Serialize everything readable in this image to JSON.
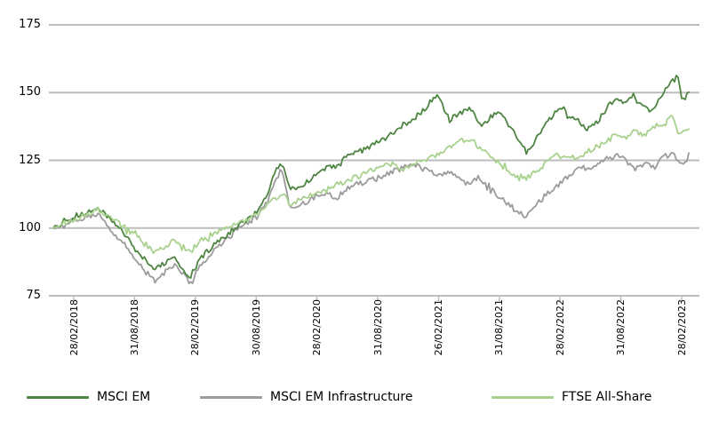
{
  "chart_data": {
    "type": "line",
    "title": "",
    "xlabel": "",
    "ylabel": "",
    "ylim": [
      75,
      175
    ],
    "yticks": [
      175,
      150,
      125,
      100,
      75
    ],
    "xticklabels": [
      "28/02/2018",
      "31/08/2018",
      "28/02/2019",
      "30/08/2019",
      "28/02/2020",
      "31/08/2020",
      "26/02/2021",
      "31/08/2021",
      "28/02/2022",
      "31/08/2022",
      "28/02/2023"
    ],
    "grid": "horizontal",
    "legend_position": "bottom",
    "colors": {
      "grid": "#bdbdbd",
      "axis_text": "#000000"
    },
    "series": [
      {
        "name": "MSCI EM",
        "color": "#4e8542",
        "points": [
          [
            0,
            100
          ],
          [
            0.02,
            102
          ],
          [
            0.045,
            105
          ],
          [
            0.07,
            108
          ],
          [
            0.085,
            104
          ],
          [
            0.1,
            101
          ],
          [
            0.115,
            97
          ],
          [
            0.13,
            92
          ],
          [
            0.145,
            88
          ],
          [
            0.16,
            85
          ],
          [
            0.175,
            87
          ],
          [
            0.19,
            90
          ],
          [
            0.2,
            86
          ],
          [
            0.215,
            82
          ],
          [
            0.23,
            88
          ],
          [
            0.245,
            92
          ],
          [
            0.26,
            95
          ],
          [
            0.275,
            98
          ],
          [
            0.29,
            101
          ],
          [
            0.305,
            103
          ],
          [
            0.32,
            106
          ],
          [
            0.335,
            112
          ],
          [
            0.35,
            121
          ],
          [
            0.36,
            124
          ],
          [
            0.372,
            114
          ],
          [
            0.385,
            115
          ],
          [
            0.4,
            117
          ],
          [
            0.415,
            120
          ],
          [
            0.43,
            122
          ],
          [
            0.445,
            123
          ],
          [
            0.46,
            126
          ],
          [
            0.475,
            128
          ],
          [
            0.49,
            129
          ],
          [
            0.505,
            131
          ],
          [
            0.52,
            133
          ],
          [
            0.535,
            135
          ],
          [
            0.55,
            138
          ],
          [
            0.565,
            140
          ],
          [
            0.58,
            143
          ],
          [
            0.595,
            147
          ],
          [
            0.605,
            149
          ],
          [
            0.615,
            144
          ],
          [
            0.625,
            140
          ],
          [
            0.64,
            142
          ],
          [
            0.655,
            145
          ],
          [
            0.665,
            141
          ],
          [
            0.675,
            138
          ],
          [
            0.69,
            141
          ],
          [
            0.705,
            143
          ],
          [
            0.715,
            139
          ],
          [
            0.73,
            133
          ],
          [
            0.745,
            128
          ],
          [
            0.755,
            131
          ],
          [
            0.77,
            137
          ],
          [
            0.785,
            141
          ],
          [
            0.8,
            145
          ],
          [
            0.81,
            142
          ],
          [
            0.825,
            139
          ],
          [
            0.84,
            136
          ],
          [
            0.855,
            139
          ],
          [
            0.87,
            144
          ],
          [
            0.885,
            148
          ],
          [
            0.9,
            146
          ],
          [
            0.91,
            148
          ],
          [
            0.925,
            146
          ],
          [
            0.94,
            143
          ],
          [
            0.955,
            148
          ],
          [
            0.965,
            152
          ],
          [
            0.975,
            155
          ],
          [
            0.982,
            158
          ],
          [
            0.99,
            147
          ],
          [
            1,
            150
          ]
        ]
      },
      {
        "name": "MSCI EM Infrastructure",
        "color": "#9b9b9b",
        "points": [
          [
            0,
            100
          ],
          [
            0.02,
            101
          ],
          [
            0.045,
            103
          ],
          [
            0.07,
            105
          ],
          [
            0.085,
            101
          ],
          [
            0.1,
            97
          ],
          [
            0.115,
            93
          ],
          [
            0.13,
            88
          ],
          [
            0.145,
            84
          ],
          [
            0.16,
            80
          ],
          [
            0.175,
            83
          ],
          [
            0.19,
            86
          ],
          [
            0.2,
            84
          ],
          [
            0.215,
            80
          ],
          [
            0.23,
            86
          ],
          [
            0.245,
            90
          ],
          [
            0.26,
            93
          ],
          [
            0.275,
            96
          ],
          [
            0.29,
            100
          ],
          [
            0.305,
            102
          ],
          [
            0.32,
            104
          ],
          [
            0.335,
            110
          ],
          [
            0.35,
            118
          ],
          [
            0.36,
            122
          ],
          [
            0.372,
            108
          ],
          [
            0.385,
            108
          ],
          [
            0.4,
            110
          ],
          [
            0.415,
            112
          ],
          [
            0.43,
            113
          ],
          [
            0.445,
            111
          ],
          [
            0.46,
            114
          ],
          [
            0.475,
            116
          ],
          [
            0.49,
            117
          ],
          [
            0.505,
            118
          ],
          [
            0.52,
            119
          ],
          [
            0.535,
            121
          ],
          [
            0.55,
            122
          ],
          [
            0.565,
            124
          ],
          [
            0.58,
            122
          ],
          [
            0.595,
            121
          ],
          [
            0.61,
            119
          ],
          [
            0.625,
            121
          ],
          [
            0.64,
            118
          ],
          [
            0.655,
            116
          ],
          [
            0.67,
            119
          ],
          [
            0.685,
            115
          ],
          [
            0.7,
            112
          ],
          [
            0.715,
            109
          ],
          [
            0.73,
            106
          ],
          [
            0.745,
            104
          ],
          [
            0.755,
            107
          ],
          [
            0.77,
            111
          ],
          [
            0.785,
            114
          ],
          [
            0.8,
            117
          ],
          [
            0.815,
            120
          ],
          [
            0.83,
            123
          ],
          [
            0.845,
            121
          ],
          [
            0.86,
            124
          ],
          [
            0.875,
            126
          ],
          [
            0.89,
            127
          ],
          [
            0.9,
            125
          ],
          [
            0.915,
            122
          ],
          [
            0.93,
            124
          ],
          [
            0.945,
            122
          ],
          [
            0.96,
            126
          ],
          [
            0.975,
            128
          ],
          [
            0.985,
            123
          ],
          [
            1,
            126
          ]
        ]
      },
      {
        "name": "FTSE All-Share",
        "color": "#a9d18e",
        "points": [
          [
            0,
            100
          ],
          [
            0.02,
            102
          ],
          [
            0.045,
            104
          ],
          [
            0.07,
            107
          ],
          [
            0.085,
            105
          ],
          [
            0.1,
            102
          ],
          [
            0.115,
            100
          ],
          [
            0.13,
            97
          ],
          [
            0.145,
            94
          ],
          [
            0.16,
            91
          ],
          [
            0.175,
            93
          ],
          [
            0.19,
            96
          ],
          [
            0.2,
            94
          ],
          [
            0.215,
            91
          ],
          [
            0.23,
            95
          ],
          [
            0.245,
            97
          ],
          [
            0.26,
            99
          ],
          [
            0.275,
            100
          ],
          [
            0.29,
            102
          ],
          [
            0.305,
            103
          ],
          [
            0.32,
            105
          ],
          [
            0.335,
            108
          ],
          [
            0.35,
            111
          ],
          [
            0.36,
            113
          ],
          [
            0.372,
            109
          ],
          [
            0.385,
            110
          ],
          [
            0.4,
            112
          ],
          [
            0.415,
            113
          ],
          [
            0.43,
            114
          ],
          [
            0.445,
            116
          ],
          [
            0.46,
            117
          ],
          [
            0.475,
            119
          ],
          [
            0.49,
            120
          ],
          [
            0.505,
            122
          ],
          [
            0.52,
            123
          ],
          [
            0.535,
            124
          ],
          [
            0.55,
            121
          ],
          [
            0.565,
            123
          ],
          [
            0.58,
            125
          ],
          [
            0.595,
            126
          ],
          [
            0.61,
            128
          ],
          [
            0.625,
            130
          ],
          [
            0.64,
            132
          ],
          [
            0.655,
            133
          ],
          [
            0.665,
            131
          ],
          [
            0.675,
            129
          ],
          [
            0.69,
            126
          ],
          [
            0.705,
            123
          ],
          [
            0.72,
            120
          ],
          [
            0.735,
            118
          ],
          [
            0.75,
            119
          ],
          [
            0.765,
            122
          ],
          [
            0.78,
            125
          ],
          [
            0.795,
            127
          ],
          [
            0.81,
            127
          ],
          [
            0.825,
            125
          ],
          [
            0.84,
            128
          ],
          [
            0.855,
            130
          ],
          [
            0.87,
            132
          ],
          [
            0.885,
            134
          ],
          [
            0.9,
            133
          ],
          [
            0.915,
            136
          ],
          [
            0.93,
            134
          ],
          [
            0.945,
            137
          ],
          [
            0.96,
            139
          ],
          [
            0.975,
            141
          ],
          [
            0.985,
            134
          ],
          [
            1,
            137
          ]
        ]
      }
    ]
  }
}
